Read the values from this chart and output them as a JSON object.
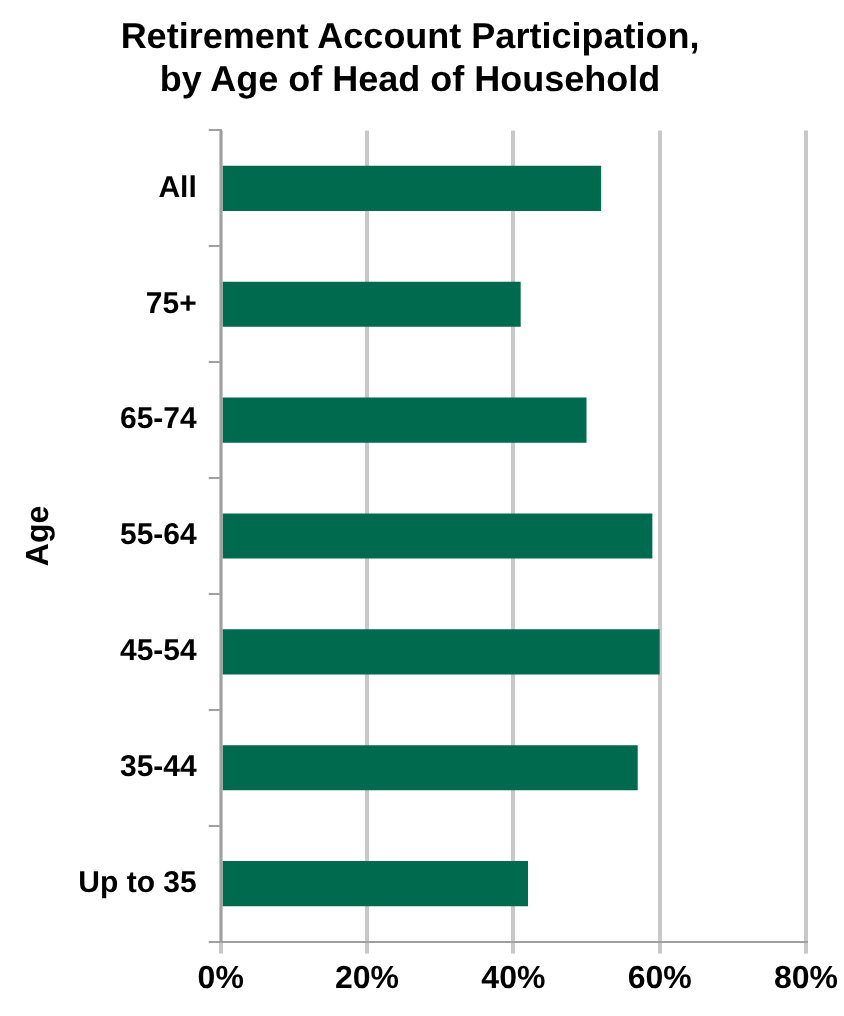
{
  "chart_data": {
    "type": "bar",
    "orientation": "horizontal",
    "title": "Retirement Account Participation,\nby Age of Head of Household",
    "ylabel": "Age",
    "categories": [
      "All",
      "75+",
      "65-74",
      "55-64",
      "45-54",
      "35-44",
      "Up to 35"
    ],
    "values": [
      52,
      41,
      50,
      59,
      60,
      57,
      42
    ],
    "color": "#006a4e",
    "xlim": [
      0,
      80
    ],
    "xticks": [
      {
        "value": 0,
        "label": "0%"
      },
      {
        "value": 20,
        "label": "20%"
      },
      {
        "value": 40,
        "label": "40%"
      },
      {
        "value": 60,
        "label": "60%"
      },
      {
        "value": 80,
        "label": "80%"
      }
    ],
    "grid": "x",
    "legend": false
  }
}
